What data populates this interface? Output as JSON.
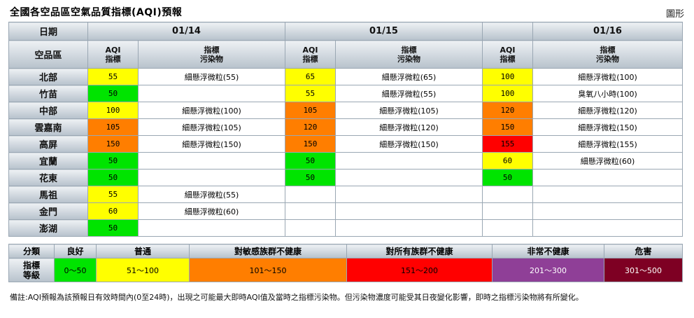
{
  "page": {
    "title": "全國各空品區空氣品質指標(AQI)預報",
    "graph_link": "圖形"
  },
  "table": {
    "date_header": "日期",
    "area_header": "空品區",
    "aqi_header_line1": "AQI",
    "aqi_header_line2": "指標",
    "pollutant_header_line1": "指標",
    "pollutant_header_line2": "污染物",
    "dates": [
      "01/14",
      "01/15",
      "01/16"
    ],
    "rows": [
      {
        "area": "北部",
        "cells": [
          {
            "aqi": "55",
            "pollutant": "細懸浮微粒(55)",
            "color": "#ffff00"
          },
          {
            "aqi": "65",
            "pollutant": "細懸浮微粒(65)",
            "color": "#ffff00"
          },
          {
            "aqi": "100",
            "pollutant": "細懸浮微粒(100)",
            "color": "#ffff00"
          }
        ]
      },
      {
        "area": "竹苗",
        "cells": [
          {
            "aqi": "50",
            "pollutant": "",
            "color": "#00e400"
          },
          {
            "aqi": "55",
            "pollutant": "細懸浮微粒(55)",
            "color": "#ffff00"
          },
          {
            "aqi": "100",
            "pollutant": "臭氧八小時(100)",
            "color": "#ffff00"
          }
        ]
      },
      {
        "area": "中部",
        "cells": [
          {
            "aqi": "100",
            "pollutant": "細懸浮微粒(100)",
            "color": "#ffff00"
          },
          {
            "aqi": "105",
            "pollutant": "細懸浮微粒(105)",
            "color": "#ff7e00"
          },
          {
            "aqi": "120",
            "pollutant": "細懸浮微粒(120)",
            "color": "#ff7e00"
          }
        ]
      },
      {
        "area": "雲嘉南",
        "cells": [
          {
            "aqi": "105",
            "pollutant": "細懸浮微粒(105)",
            "color": "#ff7e00"
          },
          {
            "aqi": "120",
            "pollutant": "細懸浮微粒(120)",
            "color": "#ff7e00"
          },
          {
            "aqi": "150",
            "pollutant": "細懸浮微粒(150)",
            "color": "#ff7e00"
          }
        ]
      },
      {
        "area": "高屏",
        "cells": [
          {
            "aqi": "150",
            "pollutant": "細懸浮微粒(150)",
            "color": "#ff7e00"
          },
          {
            "aqi": "150",
            "pollutant": "細懸浮微粒(150)",
            "color": "#ff7e00"
          },
          {
            "aqi": "155",
            "pollutant": "細懸浮微粒(155)",
            "color": "#ff0000"
          }
        ]
      },
      {
        "area": "宜蘭",
        "cells": [
          {
            "aqi": "50",
            "pollutant": "",
            "color": "#00e400"
          },
          {
            "aqi": "50",
            "pollutant": "",
            "color": "#00e400"
          },
          {
            "aqi": "60",
            "pollutant": "細懸浮微粒(60)",
            "color": "#ffff00"
          }
        ]
      },
      {
        "area": "花東",
        "cells": [
          {
            "aqi": "50",
            "pollutant": "",
            "color": "#00e400"
          },
          {
            "aqi": "50",
            "pollutant": "",
            "color": "#00e400"
          },
          {
            "aqi": "50",
            "pollutant": "",
            "color": "#00e400"
          }
        ]
      },
      {
        "area": "馬祖",
        "cells": [
          {
            "aqi": "55",
            "pollutant": "細懸浮微粒(55)",
            "color": "#ffff00"
          },
          {
            "aqi": "",
            "pollutant": "",
            "color": ""
          },
          {
            "aqi": "",
            "pollutant": "",
            "color": ""
          }
        ]
      },
      {
        "area": "金門",
        "cells": [
          {
            "aqi": "60",
            "pollutant": "細懸浮微粒(60)",
            "color": "#ffff00"
          },
          {
            "aqi": "",
            "pollutant": "",
            "color": ""
          },
          {
            "aqi": "",
            "pollutant": "",
            "color": ""
          }
        ]
      },
      {
        "area": "澎湖",
        "cells": [
          {
            "aqi": "50",
            "pollutant": "",
            "color": "#00e400"
          },
          {
            "aqi": "",
            "pollutant": "",
            "color": ""
          },
          {
            "aqi": "",
            "pollutant": "",
            "color": ""
          }
        ]
      }
    ]
  },
  "legend": {
    "category_label": "分類",
    "level_label_line1": "指標",
    "level_label_line2": "等級",
    "levels": [
      {
        "name": "良好",
        "range": "0～50",
        "color": "#00e400",
        "text_color": "#000000"
      },
      {
        "name": "普通",
        "range": "51～100",
        "color": "#ffff00",
        "text_color": "#000000"
      },
      {
        "name": "對敏感族群不健康",
        "range": "101～150",
        "color": "#ff7e00",
        "text_color": "#000000"
      },
      {
        "name": "對所有族群不健康",
        "range": "151～200",
        "color": "#ff0000",
        "text_color": "#000000"
      },
      {
        "name": "非常不健康",
        "range": "201～300",
        "color": "#8f3f97",
        "text_color": "#ffffff"
      },
      {
        "name": "危害",
        "range": "301～500",
        "color": "#7e0023",
        "text_color": "#ffffff"
      }
    ]
  },
  "note": "備註:AQI預報為該預報日有效時間內(0至24時)，出現之可能最大即時AQI值及當時之指標污染物。但污染物濃度可能受其日夜變化影響，即時之指標污染物將有所變化。"
}
